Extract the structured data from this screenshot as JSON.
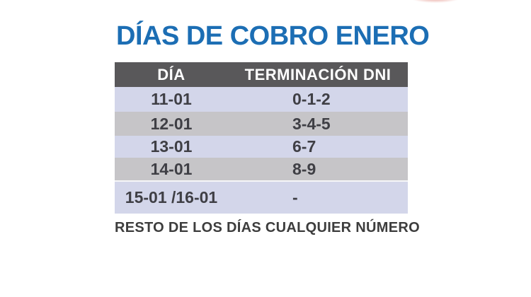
{
  "title": {
    "text": "DÍAS DE COBRO ENERO",
    "color": "#1c6eb4"
  },
  "table": {
    "headers": [
      "DÍA",
      "TERMINACIÓN DNI"
    ],
    "header_bg": "#59585a",
    "header_text_color": "#ffffff",
    "row_colors": {
      "lavender": "#d3d6ea",
      "gray": "#c6c5c8"
    },
    "cell_text_color": "#3f3f45",
    "rows": [
      {
        "dia": "11-01",
        "terminacion": "0-1-2"
      },
      {
        "dia": "12-01",
        "terminacion": "3-4-5"
      },
      {
        "dia": "13-01",
        "terminacion": "6-7"
      },
      {
        "dia": "14-01",
        "terminacion": "8-9"
      },
      {
        "dia": "15-01 /16-01",
        "terminacion": "-"
      }
    ]
  },
  "footer": {
    "text": "RESTO DE LOS DÍAS CUALQUIER NÚMERO",
    "color": "#3d3d3d"
  },
  "decor": {
    "top_edge_smudge_color": "#dd7d73"
  }
}
